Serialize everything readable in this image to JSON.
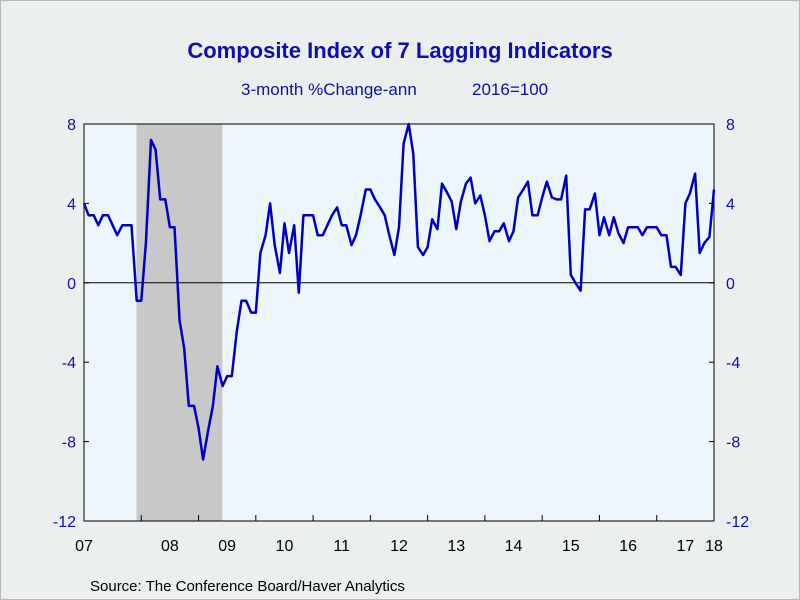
{
  "chart_data": {
    "type": "line",
    "title": "Composite Index of 7 Lagging Indicators",
    "subtitle_left": "3-month %Change-ann",
    "subtitle_right": "2016=100",
    "source": "Source:  The Conference Board/Haver Analytics",
    "ylim": [
      -12,
      8
    ],
    "y_ticks": [
      "8",
      "4",
      "0",
      "-4",
      "-8",
      "-12"
    ],
    "x_ticks": [
      "07",
      "08",
      "09",
      "10",
      "11",
      "12",
      "13",
      "14",
      "15",
      "16",
      "17",
      "18"
    ],
    "x_range": [
      2007.0,
      2018.0
    ],
    "recession": [
      2007.917,
      2009.417
    ],
    "grid": false,
    "zero_line": true,
    "colors": {
      "line": "#0000c0",
      "title": "#1010a8",
      "plot_bg": "#eef6fd",
      "recession": "#c8c8c8",
      "page_bg": "#ecefef"
    },
    "series": [
      {
        "x": [
          2007.0,
          2007.08,
          2007.17,
          2007.25,
          2007.33,
          2007.42,
          2007.5,
          2007.58,
          2007.67,
          2007.75,
          2007.83,
          2007.92,
          2008.0,
          2008.08,
          2008.17,
          2008.25,
          2008.33,
          2008.42,
          2008.5,
          2008.58,
          2008.67,
          2008.75,
          2008.83,
          2008.92,
          2009.0,
          2009.08,
          2009.17,
          2009.25,
          2009.33,
          2009.42,
          2009.5,
          2009.58,
          2009.67,
          2009.75,
          2009.83,
          2009.92,
          2010.0,
          2010.08,
          2010.17,
          2010.25,
          2010.33,
          2010.42,
          2010.5,
          2010.58,
          2010.67,
          2010.75,
          2010.83,
          2010.92,
          2011.0,
          2011.08,
          2011.17,
          2011.25,
          2011.33,
          2011.42,
          2011.5,
          2011.58,
          2011.67,
          2011.75,
          2011.83,
          2011.92,
          2012.0,
          2012.08,
          2012.17,
          2012.25,
          2012.33,
          2012.42,
          2012.5,
          2012.58,
          2012.67,
          2012.75,
          2012.83,
          2012.92,
          2013.0,
          2013.08,
          2013.17,
          2013.25,
          2013.33,
          2013.42,
          2013.5,
          2013.58,
          2013.67,
          2013.75,
          2013.83,
          2013.92,
          2014.0,
          2014.08,
          2014.17,
          2014.25,
          2014.33,
          2014.42,
          2014.5,
          2014.58,
          2014.67,
          2014.75,
          2014.83,
          2014.92,
          2015.0,
          2015.08,
          2015.17,
          2015.25,
          2015.33,
          2015.42,
          2015.5,
          2015.58,
          2015.67,
          2015.75,
          2015.83,
          2015.92,
          2016.0,
          2016.08,
          2016.17,
          2016.25,
          2016.33,
          2016.42,
          2016.5,
          2016.58,
          2016.67,
          2016.75,
          2016.83,
          2016.92,
          2017.0,
          2017.08,
          2017.17,
          2017.25,
          2017.33,
          2017.42,
          2017.5,
          2017.58,
          2017.67,
          2017.75,
          2017.83,
          2017.92,
          2018.0
        ],
        "values": [
          4.0,
          3.4,
          3.4,
          2.9,
          3.4,
          3.4,
          2.9,
          2.4,
          2.9,
          2.9,
          2.9,
          -0.9,
          -0.9,
          2.0,
          7.2,
          6.7,
          4.2,
          4.2,
          2.8,
          2.8,
          -1.9,
          -3.3,
          -6.2,
          -6.2,
          -7.3,
          -8.9,
          -7.4,
          -6.2,
          -4.2,
          -5.2,
          -4.7,
          -4.7,
          -2.4,
          -0.9,
          -0.9,
          -1.5,
          -1.5,
          1.5,
          2.4,
          4.0,
          1.9,
          0.5,
          3.0,
          1.5,
          2.9,
          -0.5,
          3.4,
          3.4,
          3.4,
          2.4,
          2.4,
          2.9,
          3.4,
          3.8,
          2.9,
          2.9,
          1.9,
          2.4,
          3.4,
          4.7,
          4.7,
          4.2,
          3.8,
          3.4,
          2.4,
          1.4,
          2.8,
          7.0,
          8.0,
          6.5,
          1.8,
          1.4,
          1.8,
          3.2,
          2.7,
          5.0,
          4.6,
          4.1,
          2.7,
          4.1,
          5.0,
          5.3,
          4.0,
          4.4,
          3.4,
          2.1,
          2.6,
          2.6,
          3.0,
          2.1,
          2.6,
          4.3,
          4.7,
          5.1,
          3.4,
          3.4,
          4.3,
          5.1,
          4.3,
          4.2,
          4.2,
          5.4,
          0.4,
          0.0,
          -0.4,
          3.7,
          3.7,
          4.5,
          2.4,
          3.3,
          2.4,
          3.3,
          2.5,
          2.0,
          2.8,
          2.8,
          2.8,
          2.4,
          2.8,
          2.8,
          2.8,
          2.4,
          2.4,
          0.8,
          0.8,
          0.4,
          4.0,
          4.5,
          5.5,
          1.5,
          2.0,
          2.3,
          4.7
        ]
      }
    ]
  }
}
